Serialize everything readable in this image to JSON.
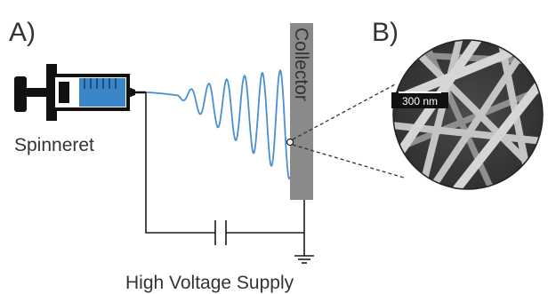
{
  "panels": {
    "a_label": "A)",
    "b_label": "B)"
  },
  "labels": {
    "spinneret": "Spinneret",
    "collector": "Collector",
    "power_supply": "High Voltage Supply",
    "scale_bar": "300 nm"
  },
  "colors": {
    "line": "#1a1a1a",
    "fluid": "#3a86c8",
    "jet": "#4a8fd0",
    "collector": "#8a8a8a",
    "sem_background": "#3c3c3c",
    "fibers": "#bdbdbd"
  }
}
